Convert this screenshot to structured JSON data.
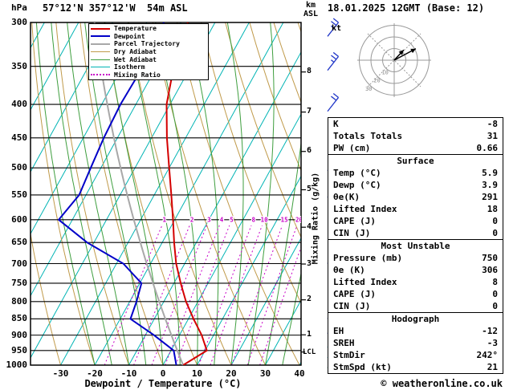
{
  "header": {
    "station": "57°12'N 357°12'W  54m ASL",
    "datetime": "18.01.2025 12GMT (Base: 12)"
  },
  "axes": {
    "pressure_unit": "hPa",
    "pressure_ticks": [
      300,
      350,
      400,
      450,
      500,
      550,
      600,
      650,
      700,
      750,
      800,
      850,
      900,
      950,
      1000
    ],
    "temp_axis_label": "Dewpoint / Temperature (°C)",
    "temp_ticks": [
      -30,
      -20,
      -10,
      0,
      10,
      20,
      30,
      40
    ],
    "altitude_unit_top": "km",
    "altitude_unit_bottom": "ASL",
    "altitude_ticks_km": [
      8,
      7,
      6,
      5,
      4,
      3,
      2,
      1
    ],
    "lcl_label": "LCL",
    "mixing_ratio_axis_label": "Mixing Ratio (g/kg)"
  },
  "legend": {
    "items": [
      {
        "label": "Temperature",
        "color": "#d40000",
        "dash": "solid",
        "width": 2
      },
      {
        "label": "Dewpoint",
        "color": "#0000c8",
        "dash": "solid",
        "width": 2
      },
      {
        "label": "Parcel Trajectory",
        "color": "#a8a8a8",
        "dash": "solid",
        "width": 2
      },
      {
        "label": "Dry Adiabat",
        "color": "#c09a4a",
        "dash": "solid",
        "width": 1
      },
      {
        "label": "Wet Adiabat",
        "color": "#3e9e3e",
        "dash": "solid",
        "width": 1
      },
      {
        "label": "Isotherm",
        "color": "#00b4b4",
        "dash": "solid",
        "width": 1
      },
      {
        "label": "Mixing Ratio",
        "color": "#c800c8",
        "dash": "dotted",
        "width": 2
      }
    ]
  },
  "chart_data": {
    "type": "line",
    "subtype": "skewt_logp_sounding",
    "pressure_range_hpa": [
      300,
      1000
    ],
    "pressure_hpa": [
      1000,
      950,
      900,
      850,
      800,
      750,
      700,
      650,
      600,
      550,
      500,
      450,
      400,
      350,
      300
    ],
    "series": [
      {
        "name": "Temperature",
        "unit": "°C",
        "color": "#d40000",
        "values": [
          5.9,
          10.5,
          6.5,
          1.5,
          -3.5,
          -8.0,
          -12.5,
          -16.5,
          -20.5,
          -25.0,
          -30.0,
          -35.5,
          -41.0,
          -45.0,
          -48.0
        ]
      },
      {
        "name": "Dewpoint",
        "unit": "°C",
        "color": "#0000c8",
        "values": [
          3.9,
          0.8,
          -7.5,
          -17.0,
          -18.0,
          -19.5,
          -28.0,
          -42.0,
          -54.0,
          -52.0,
          -53.0,
          -54.0,
          -54.5,
          -54.0,
          -55.0
        ]
      }
    ],
    "parcel": {
      "type": "dry_adiabat_from_surface",
      "surface_temp_c": 5.9,
      "color": "#a8a8a8"
    },
    "mixing_ratio_lines_gkg": [
      1,
      2,
      3,
      4,
      5,
      8,
      10,
      15,
      20,
      25
    ],
    "isotherms_c": {
      "min": -100,
      "max": 40,
      "step": 10
    },
    "dry_adiabats_surface_c": {
      "min": -40,
      "max": 160,
      "step": 10
    },
    "wet_adiabats_surface_c": {
      "min": -20,
      "max": 35,
      "step": 5
    },
    "lcl_pressure_hpa": 955
  },
  "wind_barbs": [
    {
      "pressure_hpa": 315,
      "speed_kt": 25,
      "color": "#2036c8"
    },
    {
      "pressure_hpa": 355,
      "speed_kt": 25,
      "color": "#2036c8"
    },
    {
      "pressure_hpa": 410,
      "speed_kt": 20,
      "color": "#2036c8"
    },
    {
      "pressure_hpa": 505,
      "speed_kt": 20,
      "color": "#2036c8"
    },
    {
      "pressure_hpa": 555,
      "speed_kt": 15,
      "color": "#2036c8"
    },
    {
      "pressure_hpa": 700,
      "speed_kt": 10,
      "color": "#2036c8"
    },
    {
      "pressure_hpa": 850,
      "speed_kt": 15,
      "color": "#2036c8"
    },
    {
      "pressure_hpa": 895,
      "speed_kt": 15,
      "color": "#2036c8"
    },
    {
      "pressure_hpa": 940,
      "speed_kt": 15,
      "color": "#00b4c8"
    },
    {
      "pressure_hpa": 975,
      "speed_kt": 15,
      "color": "#00b4c8"
    },
    {
      "pressure_hpa": 1010,
      "speed_kt": 10,
      "color": "#00a050"
    }
  ],
  "hodograph": {
    "unit": "kt",
    "rings_kt": [
      10,
      20,
      30
    ],
    "vectors": [
      {
        "toward_deg": 62,
        "speed_kt": 21
      },
      {
        "toward_deg": 43,
        "speed_kt": 12
      }
    ]
  },
  "stats": {
    "sections": [
      {
        "header": null,
        "rows": [
          [
            "K",
            "-8"
          ],
          [
            "Totals Totals",
            "31"
          ],
          [
            "PW (cm)",
            "0.66"
          ]
        ]
      },
      {
        "header": "Surface",
        "rows": [
          [
            "Temp (°C)",
            "5.9"
          ],
          [
            "Dewp (°C)",
            "3.9"
          ],
          [
            "θe(K)",
            "291"
          ],
          [
            "Lifted Index",
            "18"
          ],
          [
            "CAPE (J)",
            "0"
          ],
          [
            "CIN (J)",
            "0"
          ]
        ]
      },
      {
        "header": "Most Unstable",
        "rows": [
          [
            "Pressure (mb)",
            "750"
          ],
          [
            "θe (K)",
            "306"
          ],
          [
            "Lifted Index",
            "8"
          ],
          [
            "CAPE (J)",
            "0"
          ],
          [
            "CIN (J)",
            "0"
          ]
        ]
      },
      {
        "header": "Hodograph",
        "rows": [
          [
            "EH",
            "-12"
          ],
          [
            "SREH",
            "-3"
          ],
          [
            "StmDir",
            "242°"
          ],
          [
            "StmSpd (kt)",
            "21"
          ]
        ]
      }
    ]
  },
  "footer": {
    "credit": "© weatheronline.co.uk"
  }
}
